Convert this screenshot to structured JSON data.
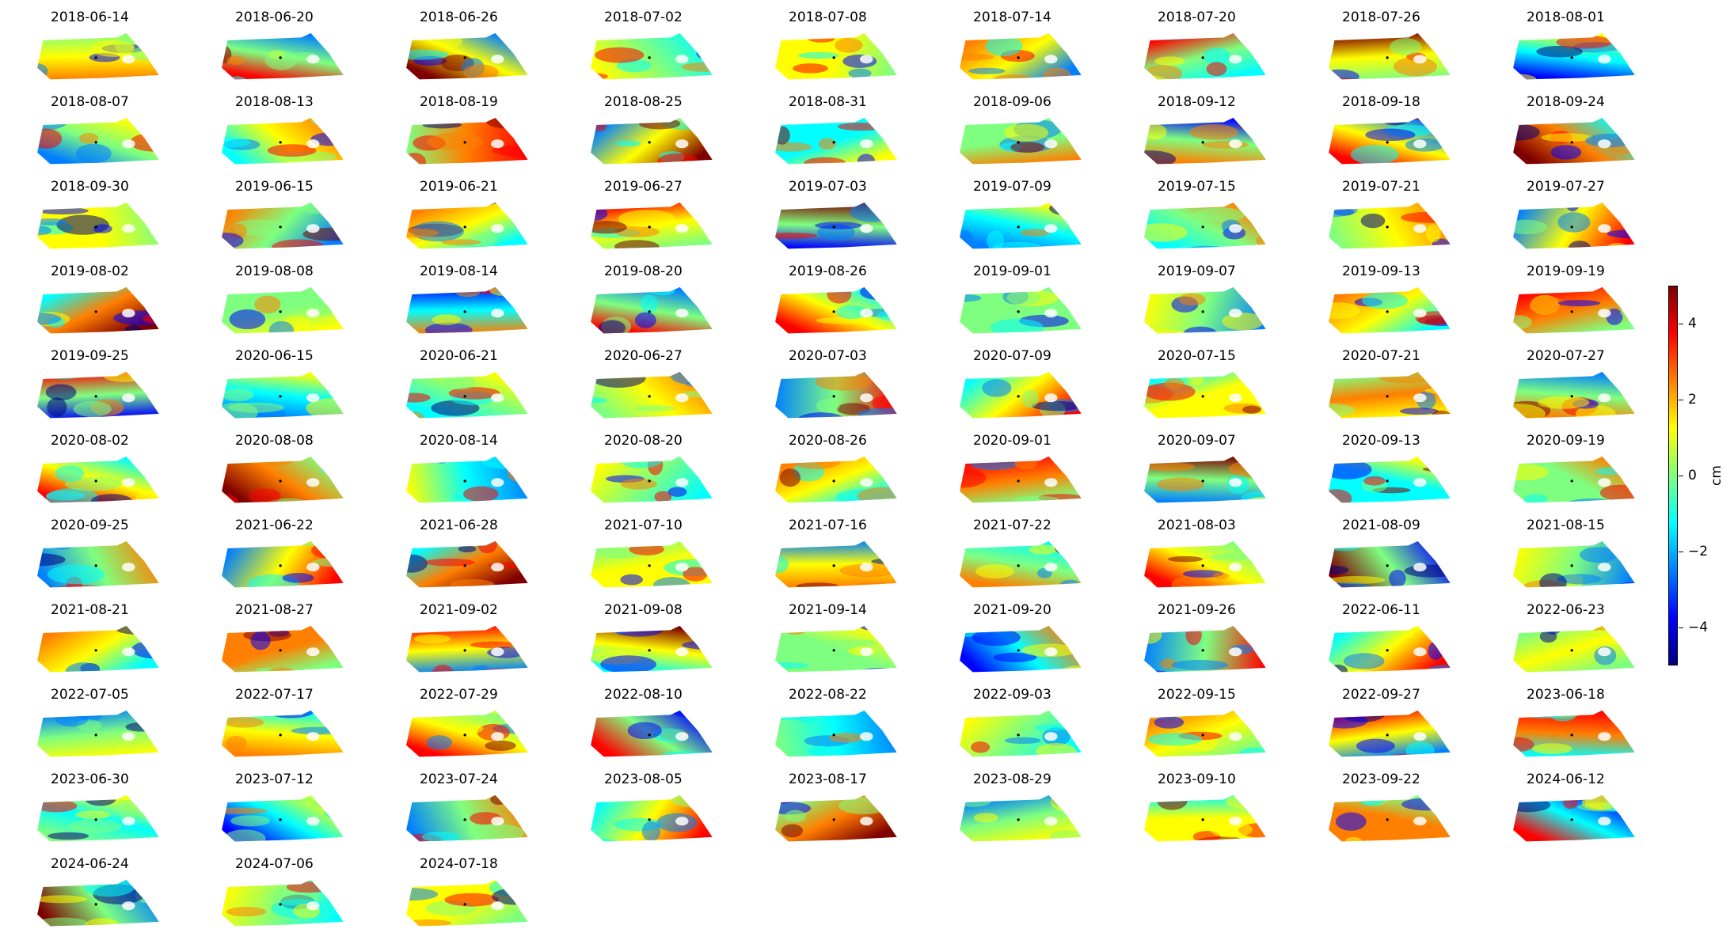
{
  "panels": [
    "2018-06-14",
    "2018-06-20",
    "2018-06-26",
    "2018-07-02",
    "2018-07-08",
    "2018-07-14",
    "2018-07-20",
    "2018-07-26",
    "2018-08-01",
    "2018-08-07",
    "2018-08-13",
    "2018-08-19",
    "2018-08-25",
    "2018-08-31",
    "2018-09-06",
    "2018-09-12",
    "2018-09-18",
    "2018-09-24",
    "2018-09-30",
    "2019-06-15",
    "2019-06-21",
    "2019-06-27",
    "2019-07-03",
    "2019-07-09",
    "2019-07-15",
    "2019-07-21",
    "2019-07-27",
    "2019-08-02",
    "2019-08-08",
    "2019-08-14",
    "2019-08-20",
    "2019-08-26",
    "2019-09-01",
    "2019-09-07",
    "2019-09-13",
    "2019-09-19",
    "2019-09-25",
    "2020-06-15",
    "2020-06-21",
    "2020-06-27",
    "2020-07-03",
    "2020-07-09",
    "2020-07-15",
    "2020-07-21",
    "2020-07-27",
    "2020-08-02",
    "2020-08-08",
    "2020-08-14",
    "2020-08-20",
    "2020-08-26",
    "2020-09-01",
    "2020-09-07",
    "2020-09-13",
    "2020-09-19",
    "2020-09-25",
    "2021-06-22",
    "2021-06-28",
    "2021-07-10",
    "2021-07-16",
    "2021-07-22",
    "2021-08-03",
    "2021-08-09",
    "2021-08-15",
    "2021-08-21",
    "2021-08-27",
    "2021-09-02",
    "2021-09-08",
    "2021-09-14",
    "2021-09-20",
    "2021-09-26",
    "2022-06-11",
    "2022-06-23",
    "2022-07-05",
    "2022-07-17",
    "2022-07-29",
    "2022-08-10",
    "2022-08-22",
    "2022-09-03",
    "2022-09-15",
    "2022-09-27",
    "2023-06-18",
    "2023-06-30",
    "2023-07-12",
    "2023-07-24",
    "2023-08-05",
    "2023-08-17",
    "2023-08-29",
    "2023-09-10",
    "2023-09-22",
    "2024-06-12",
    "2024-06-24",
    "2024-07-06",
    "2024-07-18"
  ],
  "colorbar": {
    "unit": "cm",
    "min": -5,
    "max": 5,
    "ticks": [
      4,
      2,
      0,
      -2,
      -4
    ],
    "tick_labels": [
      "4",
      "2",
      "0",
      "−2",
      "−4"
    ],
    "colormap": "jet",
    "colors": [
      "#00007f",
      "#0000ff",
      "#007fff",
      "#00ffff",
      "#7fff7f",
      "#ffff00",
      "#ff7f00",
      "#ff0000",
      "#7f0000"
    ]
  }
}
